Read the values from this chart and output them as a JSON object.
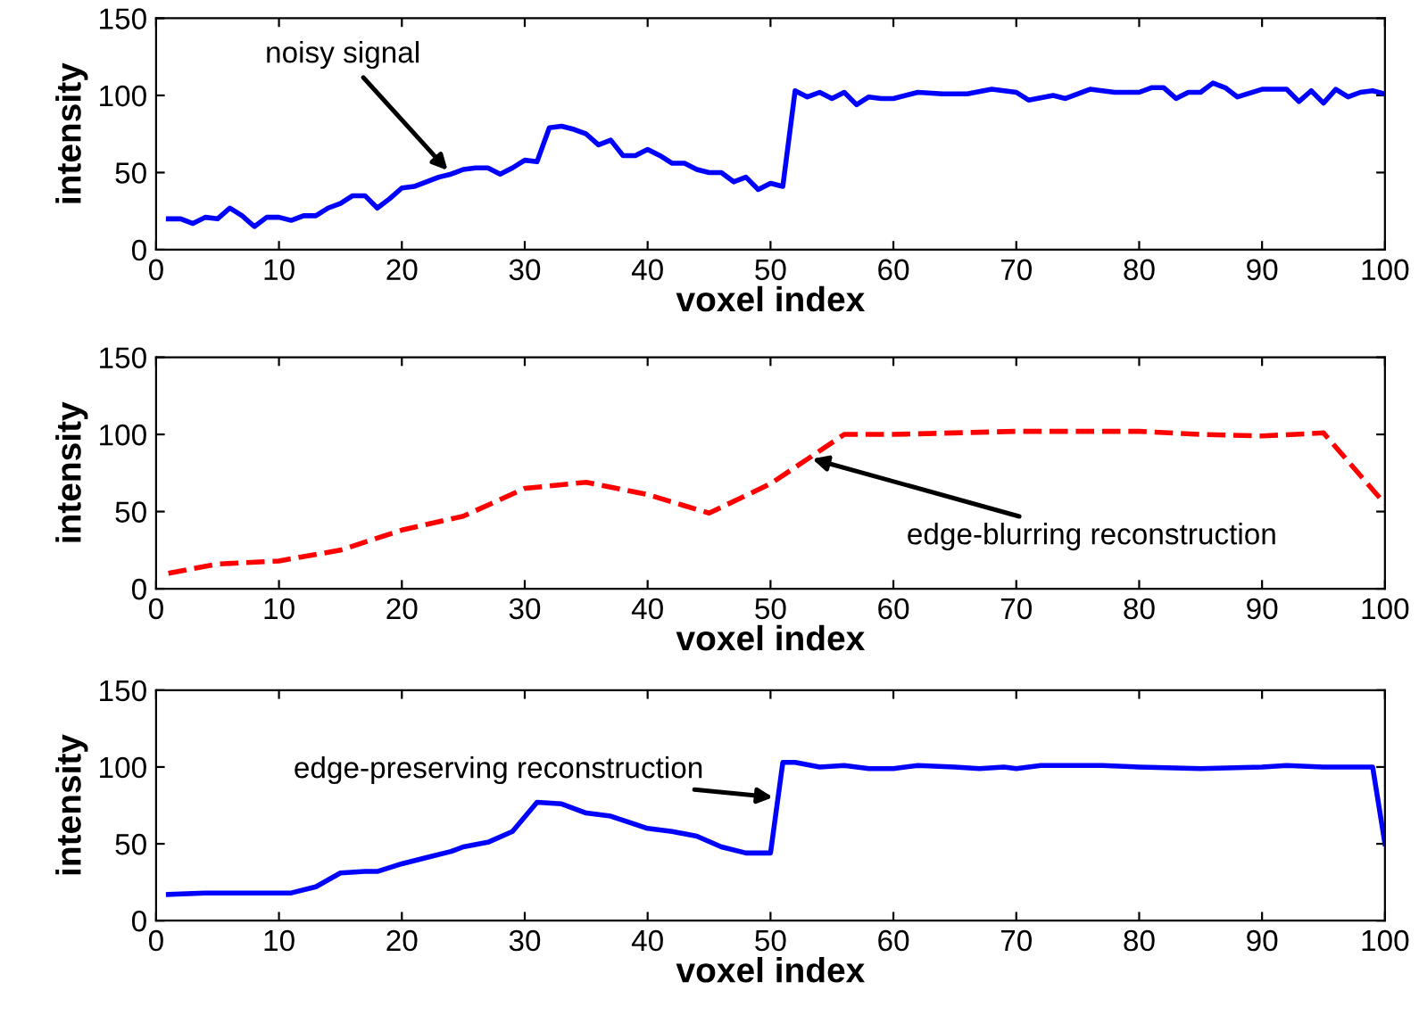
{
  "chart_data": [
    {
      "type": "line",
      "xlabel": "voxel index",
      "ylabel": "intensity",
      "xlim": [
        0,
        100
      ],
      "ylim": [
        0,
        150
      ],
      "xticks": [
        0,
        10,
        20,
        30,
        40,
        50,
        60,
        70,
        80,
        90,
        100
      ],
      "yticks": [
        0,
        50,
        100,
        150
      ],
      "grid": false,
      "line_style": "solid",
      "annotations": [
        {
          "text": "noisy signal",
          "x": 24,
          "y": 49
        }
      ],
      "series": [
        {
          "color": "#0000ff",
          "x": [
            1,
            2,
            3,
            4,
            5,
            6,
            7,
            8,
            9,
            10,
            11,
            12,
            13,
            14,
            15,
            16,
            17,
            18,
            19,
            20,
            21,
            22,
            23,
            24,
            25,
            26,
            27,
            28,
            29,
            30,
            31,
            32,
            33,
            34,
            35,
            36,
            37,
            38,
            39,
            40,
            41,
            42,
            43,
            44,
            45,
            46,
            47,
            48,
            49,
            50,
            51,
            52,
            53,
            54,
            55,
            56,
            57,
            58,
            59,
            60,
            62,
            64,
            66,
            68,
            70,
            71,
            73,
            74,
            76,
            78,
            80,
            81,
            82,
            83,
            84,
            85,
            86,
            87,
            88,
            90,
            92,
            93,
            94,
            95,
            96,
            97,
            98,
            99,
            100
          ],
          "values": [
            20,
            20,
            17,
            21,
            20,
            27,
            22,
            15,
            21,
            21,
            19,
            22,
            22,
            27,
            30,
            35,
            35,
            27,
            33,
            40,
            41,
            44,
            47,
            49,
            52,
            53,
            53,
            49,
            53,
            58,
            57,
            79,
            80,
            78,
            75,
            68,
            71,
            61,
            61,
            65,
            61,
            56,
            56,
            52,
            50,
            50,
            44,
            47,
            39,
            43,
            41,
            103,
            99,
            102,
            98,
            102,
            94,
            99,
            98,
            98,
            102,
            101,
            101,
            104,
            102,
            97,
            100,
            98,
            104,
            102,
            102,
            105,
            105,
            98,
            102,
            102,
            108,
            105,
            99,
            104,
            104,
            96,
            103,
            95,
            104,
            99,
            102,
            103,
            101
          ]
        }
      ]
    },
    {
      "type": "line",
      "xlabel": "voxel index",
      "ylabel": "intensity",
      "xlim": [
        0,
        100
      ],
      "ylim": [
        0,
        150
      ],
      "xticks": [
        0,
        10,
        20,
        30,
        40,
        50,
        60,
        70,
        80,
        90,
        100
      ],
      "yticks": [
        0,
        50,
        100,
        150
      ],
      "grid": false,
      "line_style": "dashed",
      "annotations": [
        {
          "text": "edge-blurring reconstruction",
          "x": 53,
          "y": 85
        }
      ],
      "series": [
        {
          "color": "#ff0000",
          "x": [
            1,
            3,
            5,
            10,
            15,
            20,
            25,
            30,
            35,
            40,
            45,
            50,
            53,
            56,
            60,
            70,
            80,
            85,
            90,
            95,
            100
          ],
          "values": [
            10,
            13,
            16,
            18,
            25,
            38,
            47,
            65,
            69,
            61,
            49,
            68,
            84,
            100,
            100,
            102,
            102,
            100,
            99,
            101,
            55
          ]
        }
      ]
    },
    {
      "type": "line",
      "xlabel": "voxel index",
      "ylabel": "intensity",
      "xlim": [
        0,
        100
      ],
      "ylim": [
        0,
        150
      ],
      "xticks": [
        0,
        10,
        20,
        30,
        40,
        50,
        60,
        70,
        80,
        90,
        100
      ],
      "yticks": [
        0,
        50,
        100,
        150
      ],
      "grid": false,
      "line_style": "solid",
      "annotations": [
        {
          "text": "edge-preserving reconstruction",
          "x": 50.6,
          "y": 80
        }
      ],
      "series": [
        {
          "color": "#0000ff",
          "x": [
            1,
            4,
            10,
            11,
            13,
            15,
            17,
            18,
            20,
            22,
            24,
            25,
            27,
            29,
            31,
            33,
            35,
            37,
            40,
            42,
            44,
            46,
            48,
            50,
            51,
            52,
            54,
            56,
            58,
            60,
            62,
            65,
            67,
            69,
            70,
            72,
            77,
            80,
            85,
            90,
            92,
            95,
            99,
            100
          ],
          "values": [
            17,
            18,
            18,
            18,
            22,
            31,
            32,
            32,
            37,
            41,
            45,
            48,
            51,
            58,
            77,
            76,
            70,
            68,
            60,
            58,
            55,
            48,
            44,
            44,
            103,
            103,
            100,
            101,
            99,
            99,
            101,
            100,
            99,
            100,
            99,
            101,
            101,
            100,
            99,
            100,
            101,
            100,
            100,
            50
          ]
        }
      ]
    }
  ]
}
